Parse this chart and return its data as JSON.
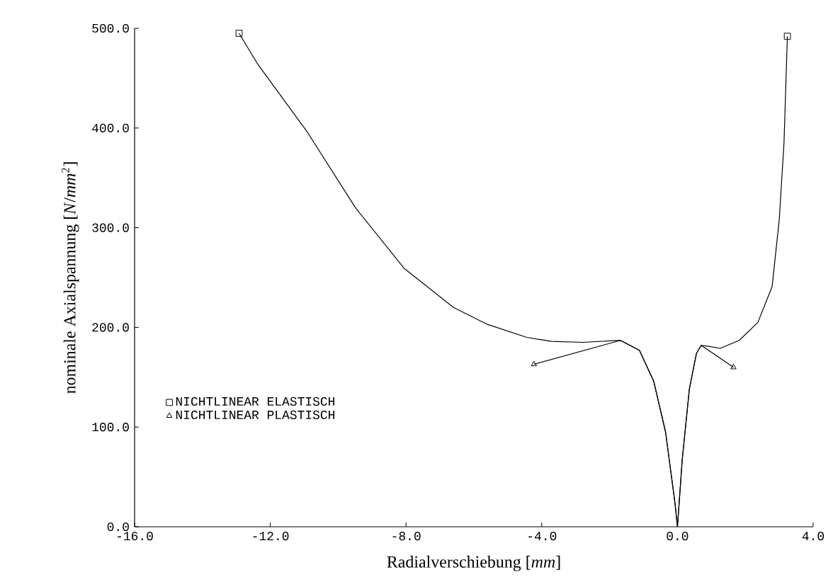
{
  "chart_data": {
    "type": "line",
    "xlabel": "Radialverschiebung [*mm*]",
    "ylabel": "nominale Axialspannung [*N*/*mm*$^{2}$]",
    "xlim": [
      -16,
      4
    ],
    "ylim": [
      0,
      500
    ],
    "xticks": [
      {
        "value": -16,
        "label": "-16.0"
      },
      {
        "value": -12,
        "label": "-12.0"
      },
      {
        "value": -8,
        "label": "-8.0"
      },
      {
        "value": -4,
        "label": "-4.0"
      },
      {
        "value": 0,
        "label": "0.0"
      },
      {
        "value": 4,
        "label": "4.0"
      }
    ],
    "yticks": [
      {
        "value": 0,
        "label": "0.0"
      },
      {
        "value": 100,
        "label": "100.0"
      },
      {
        "value": 200,
        "label": "200.0"
      },
      {
        "value": 300,
        "label": "300.0"
      },
      {
        "value": 400,
        "label": "400.0"
      },
      {
        "value": 500,
        "label": "500.0"
      }
    ],
    "legend": "bottom left",
    "series": [
      {
        "color": "#000000",
        "x": [
          -12.92,
          -12.37,
          -10.93,
          -9.49,
          -8.05,
          -6.6,
          -5.6,
          -4.44,
          -3.72,
          -2.79,
          -1.68,
          -1.12,
          -0.7,
          -0.35,
          -0.07,
          0,
          0.14,
          0.35,
          0.56,
          0.7,
          0.91,
          1.26,
          1.82,
          2.37,
          2.79,
          3.0,
          3.14,
          3.24
        ],
        "values": [
          495,
          464,
          397,
          320,
          259,
          220,
          203,
          190,
          186,
          185,
          187,
          177,
          146,
          95,
          23,
          0,
          67,
          138,
          174,
          182,
          181,
          179,
          187,
          205,
          241,
          308,
          385,
          492
        ]
      },
      {
        "color": "#000000",
        "x": [
          -4.23,
          -1.68,
          -1.12,
          -0.7,
          -0.35,
          -0.07,
          0,
          0.14,
          0.35,
          0.56,
          0.7,
          1.65
        ],
        "values": [
          163,
          187,
          177,
          146,
          95,
          23,
          0,
          67,
          138,
          174,
          182,
          160
        ]
      },
      {
        "type": "scatter",
        "name": "NICHTLINEAR ELASTISCH",
        "color": "#000000",
        "marker": "square",
        "x": [
          -12.92,
          3.24
        ],
        "values": [
          495,
          492
        ]
      },
      {
        "type": "scatter",
        "name": "NICHTLINEAR PLASTISCH",
        "color": "#000000",
        "marker": "triangle",
        "x": [
          -4.23,
          1.65
        ],
        "values": [
          163,
          160
        ]
      }
    ]
  }
}
